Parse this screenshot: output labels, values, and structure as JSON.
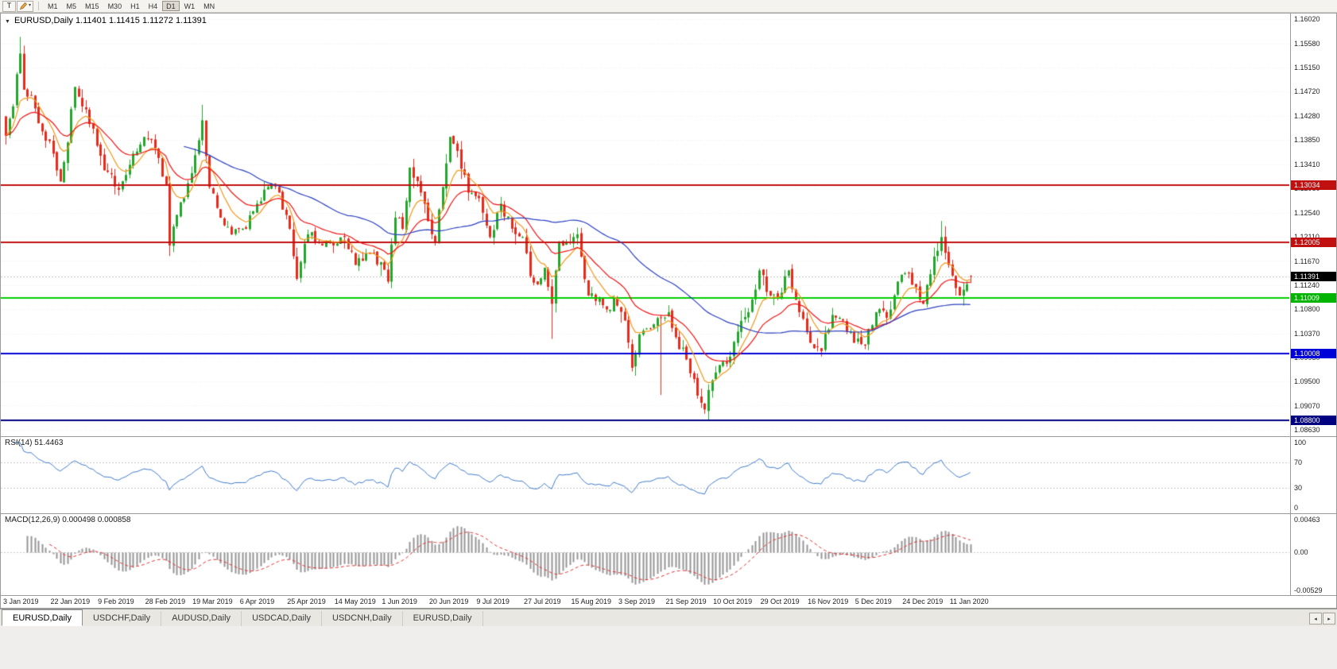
{
  "toolbar": {
    "text_tool_label": "T",
    "dropdown_caret": "▾",
    "timeframes": [
      {
        "label": "M1",
        "active": false
      },
      {
        "label": "M5",
        "active": false
      },
      {
        "label": "M15",
        "active": false
      },
      {
        "label": "M30",
        "active": false
      },
      {
        "label": "H1",
        "active": false
      },
      {
        "label": "H4",
        "active": false
      },
      {
        "label": "D1",
        "active": true
      },
      {
        "label": "W1",
        "active": false
      },
      {
        "label": "MN",
        "active": false
      }
    ]
  },
  "chart": {
    "title": "EURUSD,Daily 1.11401 1.11415 1.11272 1.11391",
    "collapse_icon": "▼"
  },
  "tab_bar": {
    "tabs": [
      {
        "label": "EURUSD,Daily",
        "active": true
      },
      {
        "label": "USDCHF,Daily",
        "active": false
      },
      {
        "label": "AUDUSD,Daily",
        "active": false
      },
      {
        "label": "USDCAD,Daily",
        "active": false
      },
      {
        "label": "USDCNH,Daily",
        "active": false
      },
      {
        "label": "EURUSD,Daily",
        "active": false
      }
    ],
    "scroll_left": "◂",
    "scroll_right": "▸"
  },
  "chart_data": {
    "type": "candlestick",
    "symbol": "EURUSD",
    "timeframe": "Daily",
    "last_candle": {
      "open": 1.11401,
      "high": 1.11415,
      "low": 1.11272,
      "close": 1.11391
    },
    "num_candles": 266,
    "candles_per_label": 13,
    "price_axis": {
      "min": 1.0852,
      "max": 1.1612,
      "ticks": [
        "1.16020",
        "1.15580",
        "1.15150",
        "1.14720",
        "1.14280",
        "1.13850",
        "1.13410",
        "1.12980",
        "1.12540",
        "1.12110",
        "1.11670",
        "1.11240",
        "1.10800",
        "1.10370",
        "1.09930",
        "1.09500",
        "1.09070",
        "1.08630"
      ]
    },
    "date_labels": [
      "3 Jan 2019",
      "22 Jan 2019",
      "9 Feb 2019",
      "28 Feb 2019",
      "19 Mar 2019",
      "6 Apr 2019",
      "25 Apr 2019",
      "14 May 2019",
      "1 Jun 2019",
      "20 Jun 2019",
      "9 Jul 2019",
      "27 Jul 2019",
      "15 Aug 2019",
      "3 Sep 2019",
      "21 Sep 2019",
      "10 Oct 2019",
      "29 Oct 2019",
      "16 Nov 2019",
      "5 Dec 2019",
      "24 Dec 2019",
      "11 Jan 2020"
    ],
    "levels": [
      {
        "value": 1.13034,
        "label": "1.13034",
        "color": "#c01010",
        "tag_bg": "#c01010",
        "tag_fg": "#ffffff"
      },
      {
        "value": 1.12005,
        "label": "1.12005",
        "color": "#c01010",
        "tag_bg": "#c01010",
        "tag_fg": "#ffffff"
      },
      {
        "value": 1.11009,
        "label": "1.11009",
        "color": "#00ce00",
        "tag_bg": "#00b400",
        "tag_fg": "#ffffff"
      },
      {
        "value": 1.10008,
        "label": "1.10008",
        "color": "#0000d8",
        "tag_bg": "#0000d8",
        "tag_fg": "#ffffff"
      },
      {
        "value": 1.088,
        "label": "1.08800",
        "color": "#000080",
        "tag_bg": "#000080",
        "tag_fg": "#ffffff"
      }
    ],
    "current_price": {
      "value": 1.11391,
      "label": "1.11391",
      "tag_bg": "#000000",
      "tag_fg": "#ffffff"
    },
    "colors": {
      "up": "#23a62c",
      "down": "#e8291b",
      "grid": "#ededed",
      "bid_line": "#c2c2c2"
    },
    "moving_averages": [
      {
        "period": 8,
        "type": "ema",
        "color": "#f09819"
      },
      {
        "period": 20,
        "type": "ema",
        "color": "#ef1515"
      },
      {
        "period": 50,
        "type": "sma",
        "color": "#2b3fbe"
      }
    ],
    "close_anchors": [
      [
        0,
        1.1392
      ],
      [
        2,
        1.1445
      ],
      [
        4,
        1.154
      ],
      [
        5,
        1.1475
      ],
      [
        7,
        1.1465
      ],
      [
        10,
        1.14
      ],
      [
        13,
        1.136
      ],
      [
        15,
        1.131
      ],
      [
        17,
        1.138
      ],
      [
        19,
        1.148
      ],
      [
        21,
        1.1445
      ],
      [
        24,
        1.1405
      ],
      [
        27,
        1.133
      ],
      [
        31,
        1.1295
      ],
      [
        34,
        1.134
      ],
      [
        38,
        1.139
      ],
      [
        41,
        1.137
      ],
      [
        44,
        1.1305
      ],
      [
        45,
        1.1195
      ],
      [
        47,
        1.125
      ],
      [
        51,
        1.1325
      ],
      [
        54,
        1.142
      ],
      [
        56,
        1.13
      ],
      [
        59,
        1.1245
      ],
      [
        62,
        1.1215
      ],
      [
        66,
        1.1225
      ],
      [
        69,
        1.127
      ],
      [
        72,
        1.13
      ],
      [
        75,
        1.129
      ],
      [
        78,
        1.1225
      ],
      [
        80,
        1.1135
      ],
      [
        83,
        1.1215
      ],
      [
        86,
        1.12
      ],
      [
        90,
        1.1195
      ],
      [
        93,
        1.121
      ],
      [
        96,
        1.116
      ],
      [
        100,
        1.118
      ],
      [
        103,
        1.1165
      ],
      [
        105,
        1.113
      ],
      [
        107,
        1.1245
      ],
      [
        109,
        1.1225
      ],
      [
        111,
        1.1335
      ],
      [
        114,
        1.129
      ],
      [
        117,
        1.1215
      ],
      [
        118,
        1.12
      ],
      [
        120,
        1.13
      ],
      [
        122,
        1.139
      ],
      [
        124,
        1.1365
      ],
      [
        127,
        1.129
      ],
      [
        130,
        1.128
      ],
      [
        133,
        1.121
      ],
      [
        136,
        1.127
      ],
      [
        139,
        1.1225
      ],
      [
        142,
        1.121
      ],
      [
        144,
        1.114
      ],
      [
        146,
        1.1125
      ],
      [
        148,
        1.1155
      ],
      [
        150,
        1.109
      ],
      [
        152,
        1.12
      ],
      [
        155,
        1.12
      ],
      [
        157,
        1.1215
      ],
      [
        160,
        1.1105
      ],
      [
        163,
        1.11
      ],
      [
        165,
        1.108
      ],
      [
        167,
        1.11
      ],
      [
        170,
        1.106
      ],
      [
        172,
        1.0975
      ],
      [
        174,
        1.1035
      ],
      [
        177,
        1.1045
      ],
      [
        180,
        1.1065
      ],
      [
        182,
        1.1075
      ],
      [
        184,
        1.103
      ],
      [
        187,
        1.099
      ],
      [
        190,
        1.0925
      ],
      [
        192,
        1.09
      ],
      [
        193,
        1.0935
      ],
      [
        196,
        1.098
      ],
      [
        199,
        1.0995
      ],
      [
        201,
        1.104
      ],
      [
        204,
        1.1075
      ],
      [
        207,
        1.115
      ],
      [
        210,
        1.1105
      ],
      [
        213,
        1.111
      ],
      [
        215,
        1.115
      ],
      [
        218,
        1.1075
      ],
      [
        221,
        1.102
      ],
      [
        224,
        1.1005
      ],
      [
        227,
        1.107
      ],
      [
        230,
        1.106
      ],
      [
        233,
        1.102
      ],
      [
        236,
        1.1015
      ],
      [
        239,
        1.1075
      ],
      [
        242,
        1.1065
      ],
      [
        245,
        1.113
      ],
      [
        247,
        1.1145
      ],
      [
        250,
        1.112
      ],
      [
        252,
        1.109
      ],
      [
        255,
        1.1175
      ],
      [
        257,
        1.121
      ],
      [
        259,
        1.116
      ],
      [
        262,
        1.1105
      ],
      [
        264,
        1.1125
      ],
      [
        265,
        1.11391
      ]
    ],
    "special_wicks": {
      "4": {
        "high": 1.157
      },
      "45": {
        "low": 1.1176
      },
      "54": {
        "high": 1.1448
      },
      "150": {
        "low": 1.1027
      },
      "180": {
        "low": 1.0926
      },
      "193": {
        "low": 1.0882
      },
      "257": {
        "high": 1.1239
      }
    },
    "indicators": {
      "rsi": {
        "label": "RSI(14) 51.4463",
        "period": 14,
        "value_display": "51.4463",
        "color": "#3e78c8",
        "levels": [
          70,
          30
        ],
        "ticks": [
          {
            "value": 100,
            "label": "100"
          },
          {
            "value": 70,
            "label": "70"
          },
          {
            "value": 30,
            "label": "30"
          },
          {
            "value": 0,
            "label": "0"
          }
        ]
      },
      "macd": {
        "label": "MACD(12,26,9) 0.000498 0.000858",
        "fast": 12,
        "slow": 26,
        "signal": 9,
        "values_display": "0.000498 0.000858",
        "histogram_color": "#969696",
        "signal_color": "#e03131",
        "ticks": [
          {
            "value": 0.00463,
            "label": "0.00463"
          },
          {
            "value": 0,
            "label": "0.00"
          },
          {
            "value": -0.00529,
            "label": "-0.00529"
          }
        ]
      }
    }
  }
}
